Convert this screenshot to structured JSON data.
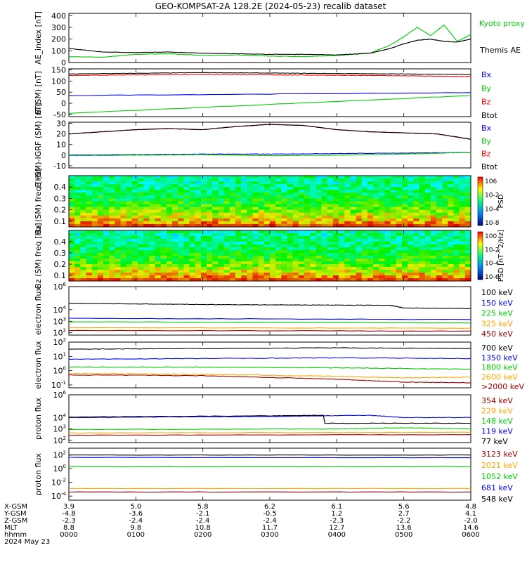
{
  "title": "GEO-KOMPSAT-2A 128.2E (2024-05-23) recalib dataset",
  "chart_data": [
    {
      "type": "line",
      "ylabel": "AE_index [nT]",
      "yticks": [
        "400",
        "300",
        "200",
        "100",
        "0"
      ],
      "ylim": [
        0,
        420
      ],
      "series": [
        {
          "name": "Kyoto proxy AE",
          "color": "#00cc00",
          "x": [
            0,
            0.5,
            1,
            1.5,
            2,
            2.5,
            3,
            3.5,
            4,
            4.5,
            4.8,
            5.0,
            5.2,
            5.4,
            5.6,
            5.8,
            6.0
          ],
          "values": [
            50,
            45,
            70,
            75,
            60,
            65,
            55,
            50,
            60,
            80,
            150,
            220,
            300,
            230,
            320,
            180,
            240
          ]
        },
        {
          "name": "Themis AE",
          "color": "#000000",
          "x": [
            0,
            0.5,
            1,
            1.5,
            2,
            2.5,
            3,
            3.5,
            4,
            4.5,
            4.8,
            5.0,
            5.2,
            5.4,
            5.6,
            5.8,
            6.0
          ],
          "values": [
            120,
            90,
            85,
            90,
            80,
            75,
            70,
            70,
            65,
            80,
            120,
            160,
            190,
            200,
            180,
            175,
            200
          ]
        }
      ]
    },
    {
      "type": "line",
      "ylabel": "B (SM) [nT]",
      "yticks": [
        "150",
        "100",
        "50",
        "0",
        "-50"
      ],
      "ylim": [
        -60,
        155
      ],
      "series": [
        {
          "name": "Bx",
          "color": "#0000ff",
          "x": [
            0,
            6
          ],
          "values": [
            35,
            48
          ]
        },
        {
          "name": "By",
          "color": "#00cc00",
          "x": [
            0,
            6
          ],
          "values": [
            -45,
            35
          ]
        },
        {
          "name": "Bz",
          "color": "#ff0000",
          "x": [
            0,
            1,
            2,
            3,
            4,
            5,
            6
          ],
          "values": [
            125,
            128,
            130,
            128,
            126,
            124,
            120
          ]
        },
        {
          "name": "Btot",
          "color": "#000000",
          "x": [
            0,
            1,
            2,
            3,
            4,
            5,
            6
          ],
          "values": [
            132,
            135,
            138,
            136,
            134,
            132,
            130
          ]
        }
      ]
    },
    {
      "type": "line",
      "ylabel": "B (SM)-IGRF (SM) [nT]",
      "yticks": [
        "30",
        "20",
        "10",
        "0",
        "-10"
      ],
      "ylim": [
        -12,
        31
      ],
      "series": [
        {
          "name": "Bx",
          "color": "#0000ff",
          "x": [
            0,
            1,
            2,
            3,
            4,
            5,
            6
          ],
          "values": [
            0,
            0.5,
            1,
            1,
            1.5,
            2,
            2.5
          ]
        },
        {
          "name": "By",
          "color": "#00cc00",
          "x": [
            0,
            1,
            2,
            3,
            4,
            5,
            6
          ],
          "values": [
            -0.5,
            0,
            0.5,
            -0.5,
            0,
            1,
            2.5
          ]
        },
        {
          "name": "Bz",
          "color": "#ff0000",
          "x": [
            0,
            0.5,
            1,
            1.5,
            2,
            2.5,
            3,
            3.5,
            4,
            4.5,
            5,
            5.5,
            6
          ],
          "values": [
            20,
            22,
            24,
            25,
            24,
            27,
            29,
            28,
            24,
            22,
            21,
            20,
            15
          ]
        },
        {
          "name": "Btot",
          "color": "#000000",
          "x": [
            0,
            0.5,
            1,
            1.5,
            2,
            2.5,
            3,
            3.5,
            4,
            4.5,
            5,
            5.5,
            6
          ],
          "values": [
            20,
            22,
            24,
            25,
            24,
            27,
            29,
            28,
            24,
            22,
            21,
            20,
            15
          ]
        }
      ]
    },
    {
      "type": "heatmap",
      "ylabel": "Bx (SM) freq [Hz]",
      "yticks": [
        "0.4",
        "0.3",
        "0.2",
        "0.1"
      ],
      "ylim": [
        0.05,
        0.5
      ],
      "colorbar": {
        "label": "PSD",
        "ticks": [
          "10^6",
          "10^-2",
          "10^-4",
          "10^-8"
        ]
      }
    },
    {
      "type": "heatmap",
      "ylabel": "Bz (SM) freq [Hz]",
      "yticks": [
        "0.4",
        "0.3",
        "0.2",
        "0.1"
      ],
      "ylim": [
        0.05,
        0.5
      ],
      "colorbar": {
        "label": "PSD [nT^2/Hz]",
        "ticks": [
          "10^0",
          "10^-2",
          "10^-4",
          "10^-6"
        ]
      }
    },
    {
      "type": "line",
      "ylabel": "electron flux",
      "log": true,
      "yticks": [
        "10^6",
        "10^4",
        "10^3",
        "10^2"
      ],
      "ylim_log": [
        1.8,
        6
      ],
      "series": [
        {
          "name": "100 keV",
          "color": "#000000",
          "x": [
            0,
            1,
            2,
            3,
            4,
            4.8,
            5.0,
            6.0
          ],
          "values": [
            4.55,
            4.5,
            4.45,
            4.42,
            4.4,
            4.38,
            4.15,
            4.1
          ]
        },
        {
          "name": "150 keV",
          "color": "#0000ff",
          "x": [
            0,
            6
          ],
          "values": [
            3.25,
            3.15
          ]
        },
        {
          "name": "225 keV",
          "color": "#00cc00",
          "x": [
            0,
            6
          ],
          "values": [
            2.95,
            2.85
          ]
        },
        {
          "name": "325 keV",
          "color": "#ffa500",
          "x": [
            0,
            6
          ],
          "values": [
            2.45,
            2.4
          ]
        },
        {
          "name": "450 keV",
          "color": "#a00000",
          "x": [
            0,
            6
          ],
          "values": [
            2.2,
            2.15
          ]
        }
      ]
    },
    {
      "type": "line",
      "ylabel": "electron flux",
      "log": true,
      "yticks": [
        "10^2",
        "10^1",
        "10^0",
        "10^-1"
      ],
      "ylim_log": [
        -1.2,
        2
      ],
      "series": [
        {
          "name": "700 keV",
          "color": "#000000",
          "x": [
            0,
            2,
            4,
            6
          ],
          "values": [
            1.5,
            1.55,
            1.6,
            1.55
          ]
        },
        {
          "name": "1350 keV",
          "color": "#0000ff",
          "x": [
            0,
            2,
            4,
            6
          ],
          "values": [
            0.8,
            0.85,
            0.9,
            0.85
          ]
        },
        {
          "name": "1800 keV",
          "color": "#00cc00",
          "x": [
            0,
            2,
            4,
            6
          ],
          "values": [
            0.25,
            0.25,
            0.2,
            0.1
          ]
        },
        {
          "name": "2600 keV",
          "color": "#ffa500",
          "x": [
            0,
            2,
            4,
            5,
            6
          ],
          "values": [
            -0.2,
            -0.25,
            -0.4,
            -0.5,
            -0.45
          ]
        },
        {
          "name": ">2000 keV",
          "color": "#a00000",
          "x": [
            0,
            2,
            4,
            5,
            6
          ],
          "values": [
            -0.3,
            -0.35,
            -0.6,
            -0.8,
            -0.85
          ]
        }
      ]
    },
    {
      "type": "line",
      "ylabel": "proton flux",
      "log": true,
      "yticks": [
        "10^6",
        "10^4",
        "10^3",
        "10^2"
      ],
      "ylim_log": [
        1.8,
        6
      ],
      "series": [
        {
          "name": "354 keV",
          "color": "#a00000",
          "x": [
            0,
            6
          ],
          "values": [
            2.45,
            2.5
          ]
        },
        {
          "name": "229 keV",
          "color": "#ffa500",
          "x": [
            0,
            6
          ],
          "values": [
            2.65,
            2.7
          ]
        },
        {
          "name": "148 keV",
          "color": "#00cc00",
          "x": [
            0,
            4,
            5,
            6
          ],
          "values": [
            2.95,
            3.0,
            3.1,
            3.0
          ]
        },
        {
          "name": "119 keV",
          "color": "#0000ff",
          "x": [
            0,
            3,
            4.5,
            5,
            6
          ],
          "values": [
            4.0,
            4.1,
            4.2,
            4.0,
            4.0
          ]
        },
        {
          "name": "77 keV",
          "color": "#000000",
          "x": [
            0,
            3,
            3.8,
            3.82,
            6
          ],
          "values": [
            4.05,
            4.15,
            4.2,
            3.5,
            3.5
          ]
        }
      ]
    },
    {
      "type": "line",
      "ylabel": "proton flux",
      "log": true,
      "yticks": [
        "10^2",
        "10^0",
        "10^-2",
        "10^-4"
      ],
      "ylim_log": [
        -4.6,
        3
      ],
      "series": [
        {
          "name": "3123 keV",
          "color": "#a00000",
          "x": [
            0,
            6
          ],
          "values": [
            -3.4,
            -3.4
          ]
        },
        {
          "name": "2021 keV",
          "color": "#ffa500",
          "x": [
            0,
            6
          ],
          "values": [
            -2.9,
            -2.9
          ]
        },
        {
          "name": "1052 keV",
          "color": "#00cc00",
          "x": [
            0,
            6
          ],
          "values": [
            0.3,
            0.3
          ]
        },
        {
          "name": "681 keV",
          "color": "#0000ff",
          "x": [
            0,
            6
          ],
          "values": [
            1.65,
            1.6
          ]
        },
        {
          "name": "548 keV",
          "color": "#000000",
          "x": [
            0,
            6
          ],
          "values": [
            2.0,
            2.0
          ]
        }
      ]
    }
  ],
  "footer": {
    "row_labels": [
      "X-GSM",
      "Y-GSM",
      "Z-GSM",
      "MLT",
      "hhmm",
      "2024 May 23"
    ],
    "columns": [
      {
        "x_gsm": "3.9",
        "y_gsm": "-4.8",
        "z_gsm": "-2.3",
        "mlt": "8.8",
        "hhmm": "0000"
      },
      {
        "x_gsm": "5.0",
        "y_gsm": "-3.6",
        "z_gsm": "-2.4",
        "mlt": "9.8",
        "hhmm": "0100"
      },
      {
        "x_gsm": "5.8",
        "y_gsm": "-2.1",
        "z_gsm": "-2.4",
        "mlt": "10.8",
        "hhmm": "0200"
      },
      {
        "x_gsm": "6.2",
        "y_gsm": "-0.5",
        "z_gsm": "-2.4",
        "mlt": "11.7",
        "hhmm": "0300"
      },
      {
        "x_gsm": "6.1",
        "y_gsm": "1.2",
        "z_gsm": "-2.3",
        "mlt": "12.7",
        "hhmm": "0400"
      },
      {
        "x_gsm": "5.6",
        "y_gsm": "2.7",
        "z_gsm": "-2.2",
        "mlt": "13.6",
        "hhmm": "0500"
      },
      {
        "x_gsm": "4.8",
        "y_gsm": "4.1",
        "z_gsm": "-2.0",
        "mlt": "14.6",
        "hhmm": "0600"
      }
    ]
  }
}
